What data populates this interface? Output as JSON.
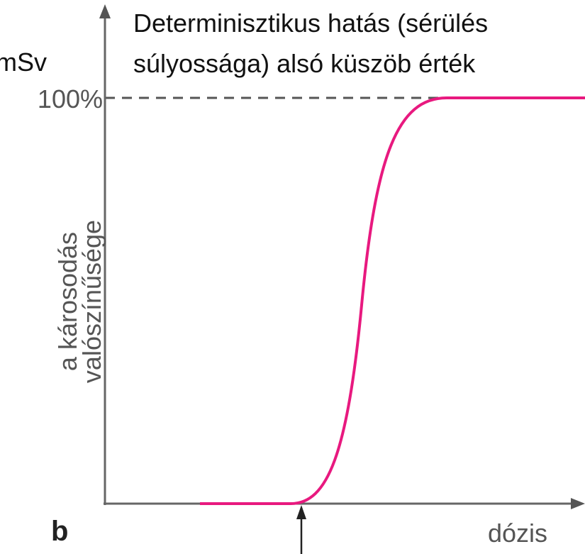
{
  "unit": "mSv",
  "title_lines": [
    "Determinisztikus hatás (sérülés",
    "súlyossága) alsó küszöb érték"
  ],
  "y_label_lines": [
    "a károsodás",
    "valószínűsége"
  ],
  "y_top_label": "100%",
  "x_label": "dózis",
  "panel_label": "b"
}
